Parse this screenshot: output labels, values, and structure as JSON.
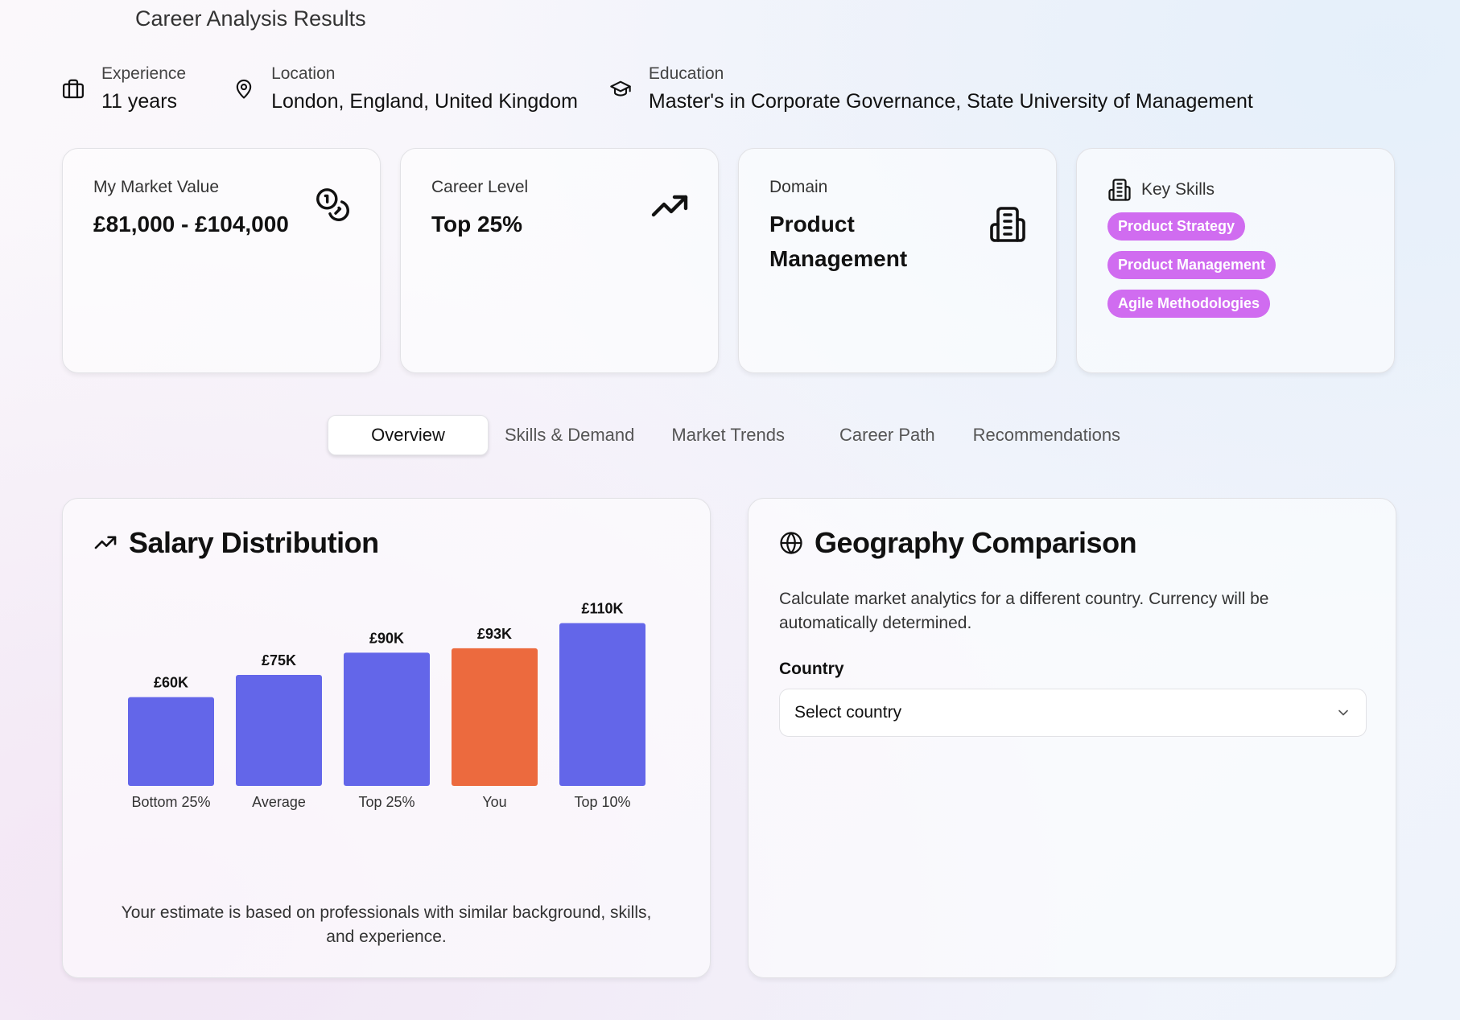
{
  "page": {
    "title": "Career Analysis Results"
  },
  "meta": {
    "experience": {
      "label": "Experience",
      "value": "11 years",
      "icon": "briefcase-icon"
    },
    "location": {
      "label": "Location",
      "value": "London, England, United Kingdom",
      "icon": "map-pin-icon"
    },
    "education": {
      "label": "Education",
      "value": "Master's in Corporate Governance, State University of Management",
      "icon": "graduation-cap-icon"
    }
  },
  "cards": {
    "market_value": {
      "label": "My Market Value",
      "value": "£81,000 - £104,000",
      "icon": "coins-icon"
    },
    "career_level": {
      "label": "Career Level",
      "value": "Top 25%",
      "icon": "trending-up-icon"
    },
    "domain": {
      "label": "Domain",
      "value": "Product Management",
      "icon": "building-icon"
    },
    "key_skills": {
      "label": "Key Skills",
      "icon": "building-icon",
      "skills": [
        "Product Strategy",
        "Product Management",
        "Agile Methodologies"
      ]
    }
  },
  "tabs": [
    "Overview",
    "Skills & Demand",
    "Market Trends",
    "Career Path",
    "Recommendations"
  ],
  "active_tab": "Overview",
  "salary": {
    "title": "Salary Distribution",
    "footnote": "Your estimate is based on professionals with similar background, skills, and experience."
  },
  "geography": {
    "title": "Geography Comparison",
    "description": "Calculate market analytics for a different country. Currency will be automatically determined.",
    "field_label": "Country",
    "select_placeholder": "Select country"
  },
  "colors": {
    "bar": "#6366e9",
    "bar_you": "#ec6a3e",
    "pill": "#d06cf0"
  },
  "chart_data": {
    "type": "bar",
    "categories": [
      "Bottom 25%",
      "Average",
      "Top 25%",
      "You",
      "Top 10%"
    ],
    "values": [
      60,
      75,
      90,
      93,
      110
    ],
    "data_labels": [
      "£60K",
      "£75K",
      "£90K",
      "£93K",
      "£110K"
    ],
    "highlight": "You",
    "ylim": [
      0,
      120
    ],
    "grid": false,
    "title": "",
    "xlabel": "",
    "ylabel": ""
  }
}
